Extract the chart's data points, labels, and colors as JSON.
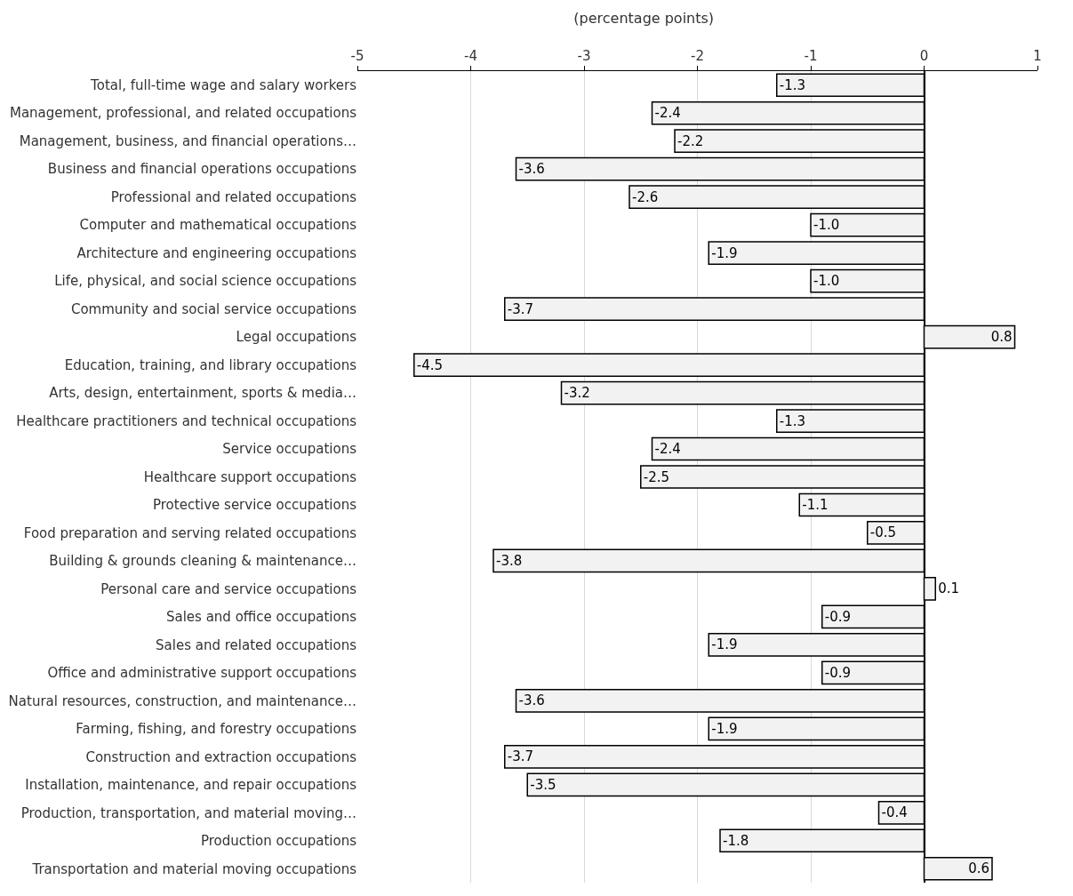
{
  "chart_data": {
    "type": "bar",
    "orientation": "horizontal",
    "title": "(percentage points)",
    "categories": [
      "Total, full-time wage and salary workers",
      "Management, professional, and related occupations",
      "Management, business, and financial operations…",
      "Business and financial operations occupations",
      "Professional and related occupations",
      "Computer and mathematical occupations",
      "Architecture and engineering occupations",
      "Life, physical, and social science occupations",
      "Community and social service occupations",
      "Legal occupations",
      "Education, training, and library occupations",
      "Arts, design, entertainment, sports & media…",
      "Healthcare practitioners and technical occupations",
      "Service occupations",
      "Healthcare support occupations",
      "Protective service occupations",
      "Food preparation and serving related occupations",
      "Building & grounds cleaning & maintenance…",
      "Personal care and service occupations",
      "Sales and office occupations",
      "Sales and related occupations",
      "Office and administrative support occupations",
      "Natural resources, construction, and maintenance…",
      "Farming, fishing, and forestry occupations",
      "Construction and extraction occupations",
      "Installation, maintenance, and repair occupations",
      "Production, transportation, and material moving…",
      "Production occupations",
      "Transportation and material moving occupations"
    ],
    "values": [
      -1.3,
      -2.4,
      -2.2,
      -3.6,
      -2.6,
      -1.0,
      -1.9,
      -1.0,
      -3.7,
      0.8,
      -4.5,
      -3.2,
      -1.3,
      -2.4,
      -2.5,
      -1.1,
      -0.5,
      -3.8,
      0.1,
      -0.9,
      -1.9,
      -0.9,
      -3.6,
      -1.9,
      -3.7,
      -3.5,
      -0.4,
      -1.8,
      0.6
    ],
    "value_labels": [
      "-1.3",
      "-2.4",
      "-2.2",
      "-3.6",
      "-2.6",
      "-1.0",
      "-1.9",
      "-1.0",
      "-3.7",
      "0.8",
      "-4.5",
      "-3.2",
      "-1.3",
      "-2.4",
      "-2.5",
      "-1.1",
      "-0.5",
      "-3.8",
      "0.1",
      "-0.9",
      "-1.9",
      "-0.9",
      "-3.6",
      "-1.9",
      "-3.7",
      "-3.5",
      "-0.4",
      "-1.8",
      "0.6"
    ],
    "color": "#f2f2f2",
    "xlim": [
      -5,
      1
    ],
    "xticks": [
      -5,
      -4,
      -3,
      -2,
      -1,
      0,
      1
    ],
    "grid": "x"
  }
}
